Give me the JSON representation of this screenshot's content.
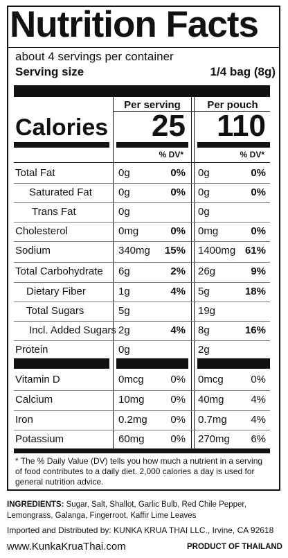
{
  "label": {
    "title": "Nutrition Facts",
    "servings_per_container": "about 4 servings per container",
    "serving_size_label": "Serving size",
    "serving_size_value": "1/4 bag (8g)",
    "columns": {
      "per_serving": "Per serving",
      "per_pouch": "Per pouch",
      "dv_header": "% DV*"
    },
    "calories": {
      "label": "Calories",
      "per_serving": "25",
      "per_pouch": "110"
    },
    "nutrients": [
      {
        "name": "Total Fat",
        "serving_amount": "0g",
        "serving_dv": "0%",
        "pouch_amount": "0g",
        "pouch_dv": "0%"
      },
      {
        "name": "Saturated Fat",
        "serving_amount": "0g",
        "serving_dv": "0%",
        "pouch_amount": "0g",
        "pouch_dv": "0%"
      },
      {
        "name": "Trans Fat",
        "serving_amount": "0g",
        "serving_dv": "",
        "pouch_amount": "0g",
        "pouch_dv": ""
      },
      {
        "name": "Cholesterol",
        "serving_amount": "0mg",
        "serving_dv": "0%",
        "pouch_amount": "0mg",
        "pouch_dv": "0%"
      },
      {
        "name": "Sodium",
        "serving_amount": "340mg",
        "serving_dv": "15%",
        "pouch_amount": "1400mg",
        "pouch_dv": "61%"
      },
      {
        "name": "Total Carbohydrate",
        "serving_amount": "6g",
        "serving_dv": "2%",
        "pouch_amount": "26g",
        "pouch_dv": "9%"
      },
      {
        "name": "Dietary Fiber",
        "serving_amount": "1g",
        "serving_dv": "4%",
        "pouch_amount": "5g",
        "pouch_dv": "18%"
      },
      {
        "name": "Total Sugars",
        "serving_amount": "5g",
        "serving_dv": "",
        "pouch_amount": "19g",
        "pouch_dv": ""
      },
      {
        "name": "Incl. Added Sugars",
        "serving_amount": "2g",
        "serving_dv": "4%",
        "pouch_amount": "8g",
        "pouch_dv": "16%"
      },
      {
        "name": "Protein",
        "serving_amount": "0g",
        "serving_dv": "",
        "pouch_amount": "2g",
        "pouch_dv": ""
      }
    ],
    "vitamins": [
      {
        "name": "Vitamin D",
        "serving_amount": "0mcg",
        "serving_dv": "0%",
        "pouch_amount": "0mcg",
        "pouch_dv": "0%"
      },
      {
        "name": "Calcium",
        "serving_amount": "10mg",
        "serving_dv": "0%",
        "pouch_amount": "40mg",
        "pouch_dv": "4%"
      },
      {
        "name": "Iron",
        "serving_amount": "0.2mg",
        "serving_dv": "0%",
        "pouch_amount": "0.7mg",
        "pouch_dv": "4%"
      },
      {
        "name": "Potassium",
        "serving_amount": "60mg",
        "serving_dv": "0%",
        "pouch_amount": "270mg",
        "pouch_dv": "6%"
      }
    ],
    "footnote": "* The % Daily Value (DV) tells you how much a nutrient in a serving of food contributes to a daily diet. 2,000 calories a day is used for general nutrition advice."
  },
  "package": {
    "ingredients_label": "INGREDIENTS:",
    "ingredients_text": "Sugar, Salt, Shallot, Garlic Bulb, Red Chile Pepper, Lemongrass, Galanga, Fingerroot, Kaffir Lime Leaves",
    "imported_by": "Imported and Distributed by: KUNKA KRUA THAI LLC., Irvine, CA 92618",
    "website": "www.KunkaKruaThai.com",
    "origin": "PRODUCT OF THAILAND"
  }
}
